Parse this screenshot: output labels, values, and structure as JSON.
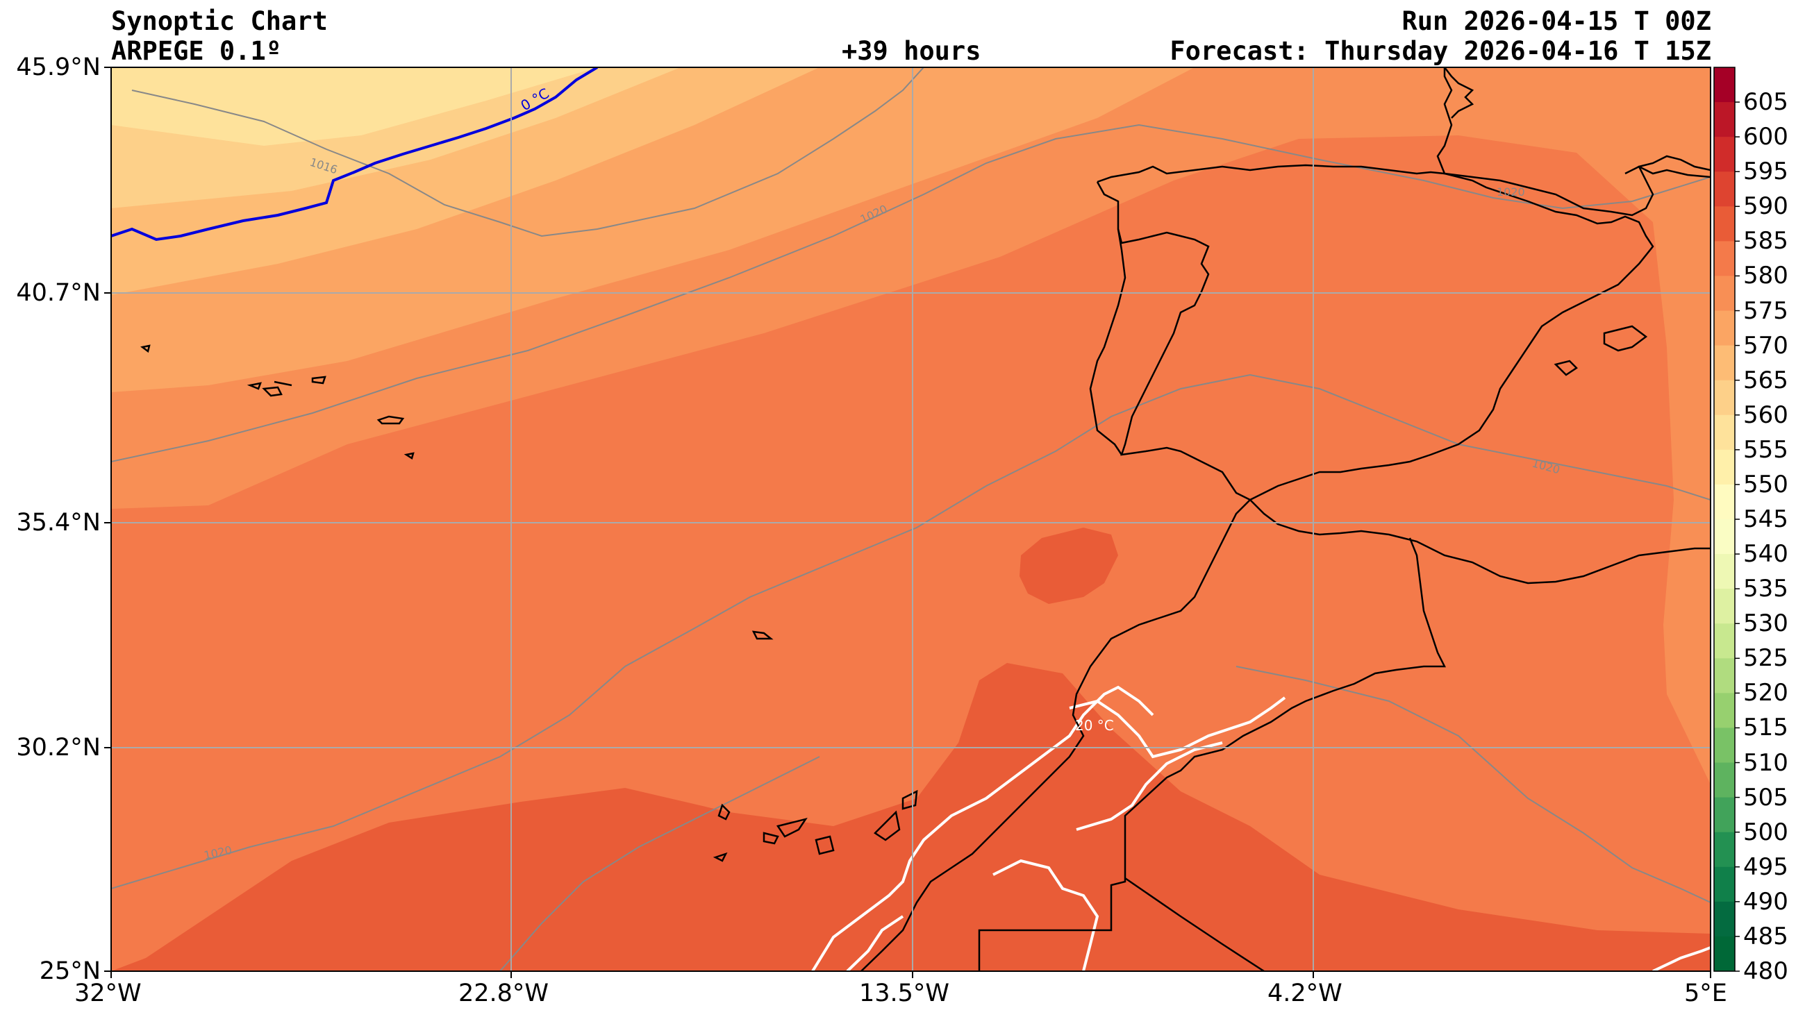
{
  "header": {
    "title": "Synoptic Chart",
    "model": "ARPEGE 0.1º",
    "lead": "+39 hours",
    "run": "Run 2026-04-15 T 00Z",
    "forecast": "Forecast: Thursday 2026-04-16 T 15Z"
  },
  "axes": {
    "lat_labels": [
      "45.9°N",
      "40.7°N",
      "35.4°N",
      "30.2°N",
      "25°N"
    ],
    "lon_labels": [
      "32°W",
      "22.8°W",
      "13.5°W",
      "4.2°W",
      "5°E"
    ],
    "lat_range": [
      25,
      45.9
    ],
    "lon_range": [
      -32,
      5
    ]
  },
  "colorbar": {
    "labels": [
      "605",
      "600",
      "595",
      "590",
      "585",
      "580",
      "575",
      "570",
      "565",
      "560",
      "555",
      "550",
      "545",
      "540",
      "535",
      "530",
      "525",
      "520",
      "515",
      "510",
      "505",
      "500",
      "495",
      "490",
      "485",
      "480"
    ],
    "levels": [
      610,
      605,
      600,
      595,
      590,
      585,
      580,
      575,
      570,
      565,
      560,
      555,
      550,
      545,
      540,
      535,
      530,
      525,
      520,
      515,
      510,
      505,
      500,
      495,
      490,
      485,
      480,
      475
    ],
    "colors": [
      "#a50026",
      "#bc1727",
      "#d02c2a",
      "#de4430",
      "#e95c37",
      "#f47a4a",
      "#f88f55",
      "#fba563",
      "#fdbc75",
      "#fdd089",
      "#fee29b",
      "#fff0aa",
      "#fffbc0",
      "#fafdc4",
      "#eef8b4",
      "#def1a2",
      "#c8e88f",
      "#b0dc7f",
      "#97d06f",
      "#79c266",
      "#5eb35f",
      "#41a35a",
      "#239152",
      "#10804a",
      "#046b40",
      "#006837"
    ]
  },
  "map_labels": {
    "isotherm_zero": "0 °C",
    "isotherm_twenty": "20 °C",
    "isobars": [
      "1016",
      "1020"
    ]
  },
  "colors": {
    "isotherm_zero": "#0000dd",
    "isotherm_twenty": "#ffffff",
    "isobar": "#888888",
    "coast": "#000000"
  }
}
